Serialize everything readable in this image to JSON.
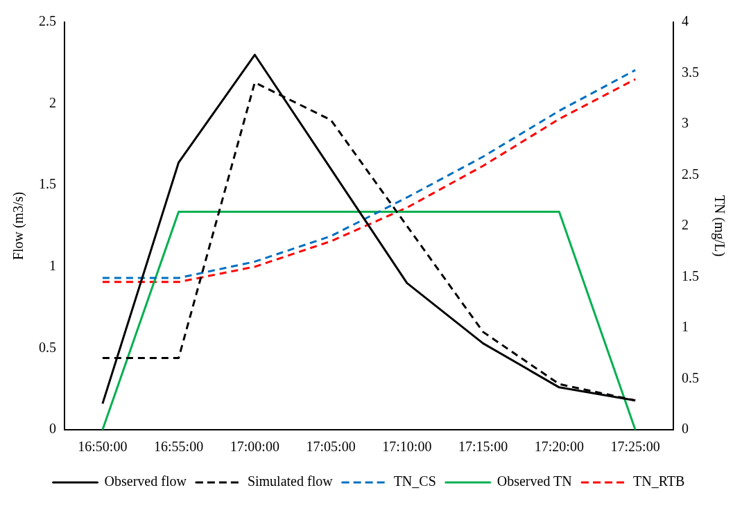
{
  "chart_data": {
    "type": "line",
    "ylabel": "Flow (m3/s)",
    "y2label": "TN (mg/L)",
    "categories": [
      "16:50:00",
      "16:55:00",
      "17:00:00",
      "17:05:00",
      "17:10:00",
      "17:15:00",
      "17:20:00",
      "17:25:00"
    ],
    "series": [
      {
        "name": "Observed flow",
        "color": "#000000",
        "line_style": "solid",
        "values": [
          0.16,
          1.64,
          2.3,
          1.6,
          0.9,
          0.53,
          0.26,
          0.18
        ]
      },
      {
        "name": "Simulated flow",
        "color": "#000000",
        "line_style": "dashed",
        "values": [
          0.44,
          0.44,
          2.13,
          1.9,
          1.25,
          0.6,
          0.28,
          0.18
        ]
      },
      {
        "name": "TN_CS",
        "color": "#0070c0",
        "line_style": "dashed",
        "axis": "y2",
        "values": [
          1.49,
          1.49,
          1.65,
          1.9,
          2.28,
          2.68,
          3.13,
          3.53
        ]
      },
      {
        "name": "Observed TN",
        "color": "#00b050",
        "line_style": "solid",
        "axis": "y2",
        "values": [
          0,
          2.14,
          2.14,
          2.14,
          2.14,
          2.14,
          2.14,
          0
        ]
      },
      {
        "name": "TN_RTB",
        "color": "#ff0000",
        "line_style": "dashed",
        "axis": "y2",
        "values": [
          1.45,
          1.45,
          1.6,
          1.85,
          2.18,
          2.59,
          3.05,
          3.44
        ]
      }
    ],
    "ylim": [
      0,
      2.5
    ],
    "yticks": [
      0,
      0.5,
      1,
      1.5,
      2,
      2.5
    ],
    "y2lim": [
      0,
      4
    ],
    "y2ticks": [
      0,
      0.5,
      1,
      1.5,
      2,
      2.5,
      3,
      3.5,
      4
    ],
    "grid": false,
    "legend": "bottom",
    "marker": "none"
  }
}
